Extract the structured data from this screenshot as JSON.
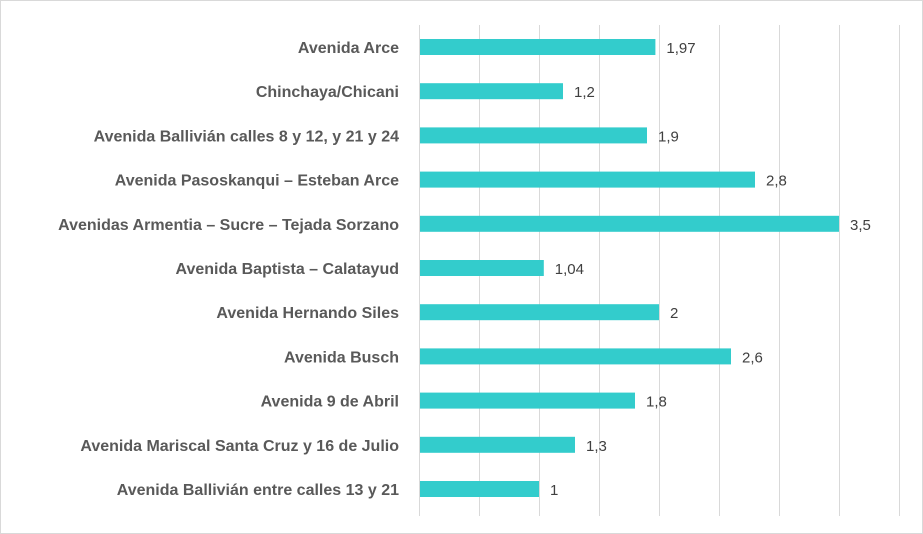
{
  "chart_data": {
    "type": "bar",
    "orientation": "horizontal",
    "categories": [
      "Avenida Arce",
      "Chinchaya/Chicani",
      "Avenida Ballivián calles 8 y 12, y 21 y 24",
      "Avenida Pasoskanqui – Esteban Arce",
      "Avenidas Armentia – Sucre – Tejada Sorzano",
      "Avenida Baptista – Calatayud",
      "Avenida Hernando Siles",
      "Avenida Busch",
      "Avenida 9 de Abril",
      "Avenida Mariscal Santa Cruz y 16 de Julio",
      "Avenida Ballivián entre calles 13 y 21"
    ],
    "values": [
      1.97,
      1.2,
      1.9,
      2.8,
      3.5,
      1.04,
      2,
      2.6,
      1.8,
      1.3,
      1
    ],
    "value_labels": [
      "1,97",
      "1,2",
      "1,9",
      "2,8",
      "3,5",
      "1,04",
      "2",
      "2,6",
      "1,8",
      "1,3",
      "1"
    ],
    "xlim": [
      0,
      4
    ],
    "grid_step": 0.5,
    "grid": true,
    "legend": "none",
    "bar_color": "#33CCCC",
    "title": "",
    "xlabel": "",
    "ylabel": ""
  }
}
